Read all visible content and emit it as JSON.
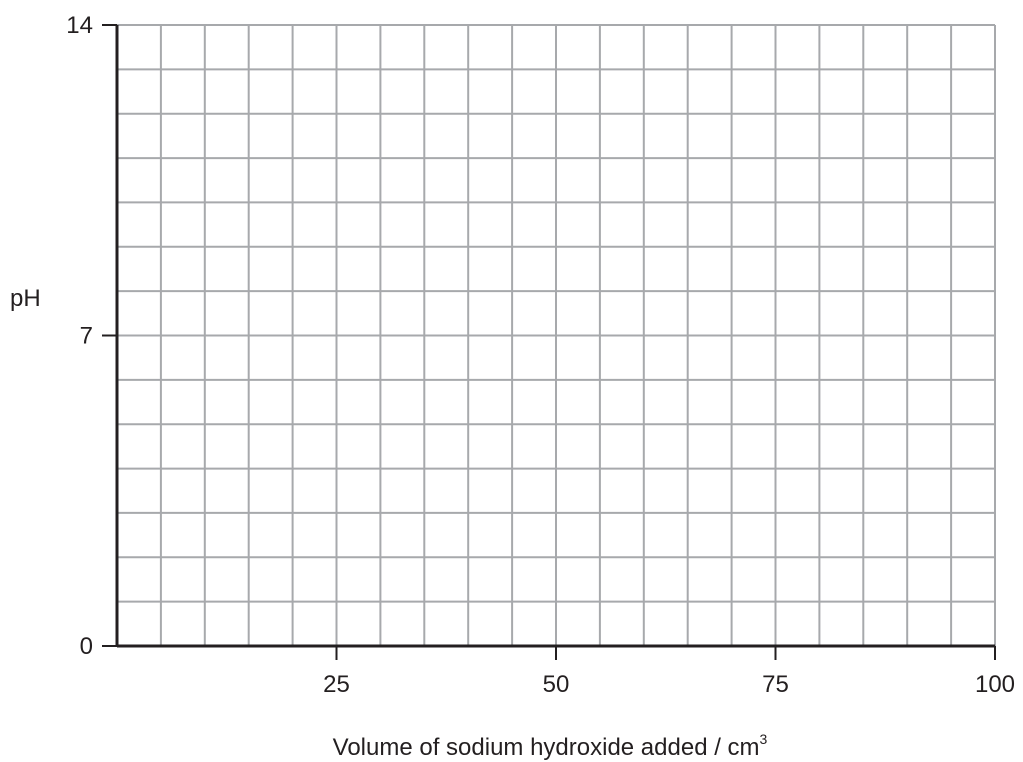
{
  "chart_data": {
    "type": "line",
    "title": "",
    "xlabel": "Volume of sodium hydroxide added / cm",
    "xlabel_sup": "3",
    "ylabel": "pH",
    "xlim": [
      0,
      100
    ],
    "ylim": [
      0,
      14
    ],
    "x_ticks": [
      25,
      50,
      75,
      100
    ],
    "x_tick_labels": [
      "25",
      "50",
      "75",
      "100"
    ],
    "y_ticks": [
      0,
      7,
      14
    ],
    "y_tick_labels": [
      "0",
      "7",
      "14"
    ],
    "grid": true,
    "grid_x_step": 5,
    "grid_y_step": 1,
    "series": [],
    "colors": {
      "grid": "#a7a9ac",
      "axis": "#231f20",
      "text": "#231f20"
    }
  }
}
